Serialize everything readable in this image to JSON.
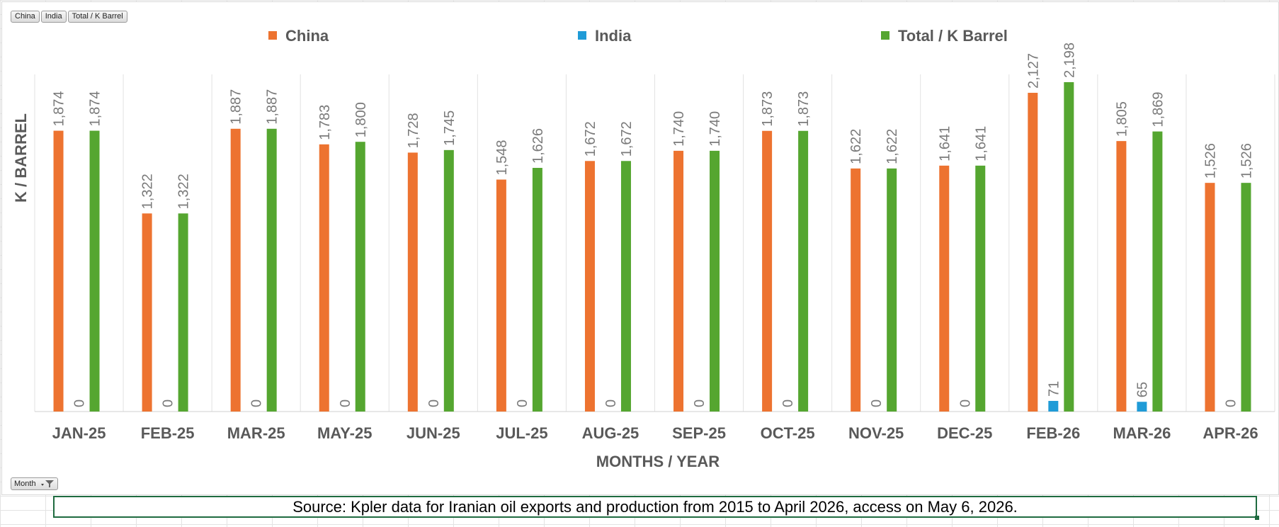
{
  "field_buttons": [
    "China",
    "India",
    "Total / K Barrel"
  ],
  "filter_button": {
    "label": "Month",
    "icon": "filter-dropdown-icon"
  },
  "source_note": "Source: Kpler data for Iranian oil exports and production from 2015 to April 2026, access on May 6, 2026.",
  "chart_data": {
    "type": "bar",
    "title": "",
    "xlabel": "MONTHS / YEAR",
    "ylabel": "K / BARREL",
    "ylim": [
      0,
      2250
    ],
    "grid": "vertical category separators",
    "legend_position": "top",
    "categories": [
      "JAN-25",
      "FEB-25",
      "MAR-25",
      "MAY-25",
      "JUN-25",
      "JUL-25",
      "AUG-25",
      "SEP-25",
      "OCT-25",
      "NOV-25",
      "DEC-25",
      "FEB-26",
      "MAR-26",
      "APR-26"
    ],
    "series": [
      {
        "name": "China",
        "color": "#ed7330",
        "values": [
          1874,
          1322,
          1887,
          1783,
          1728,
          1548,
          1672,
          1740,
          1873,
          1622,
          1641,
          2127,
          1805,
          1526
        ],
        "labels": [
          "1,874",
          "1,322",
          "1,887",
          "1,783",
          "1,728",
          "1,548",
          "1,672",
          "1,740",
          "1,873",
          "1,622",
          "1,641",
          "2,127",
          "1,805",
          "1,526"
        ]
      },
      {
        "name": "India",
        "color": "#1f9bd7",
        "values": [
          0,
          0,
          0,
          0,
          0,
          0,
          0,
          0,
          0,
          0,
          0,
          71,
          65,
          0
        ],
        "labels": [
          "0",
          "0",
          "0",
          "0",
          "0",
          "0",
          "0",
          "0",
          "0",
          "0",
          "0",
          "71",
          "65",
          "0"
        ]
      },
      {
        "name": "Total / K Barrel",
        "color": "#55a630",
        "values": [
          1874,
          1322,
          1887,
          1800,
          1745,
          1626,
          1672,
          1740,
          1873,
          1622,
          1641,
          2198,
          1869,
          1526
        ],
        "labels": [
          "1,874",
          "1,322",
          "1,887",
          "1,800",
          "1,745",
          "1,626",
          "1,672",
          "1,740",
          "1,873",
          "1,622",
          "1,641",
          "2,198",
          "1,869",
          "1,526"
        ]
      }
    ]
  }
}
